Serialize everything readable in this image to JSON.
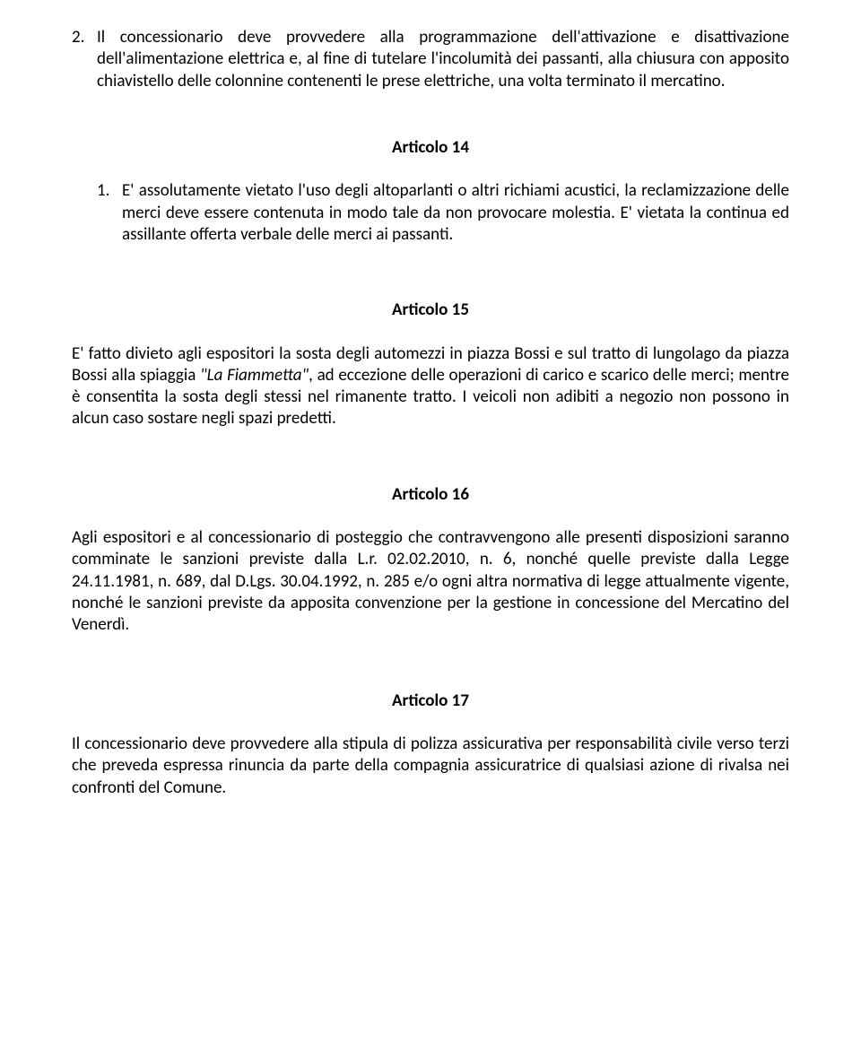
{
  "item2": {
    "marker": "2.",
    "text_a": "Il concessionario deve provvedere alla programmazione dell'attivazione e disattivazione dell'alimentazione elettrica e, al fine di tutelare l'incolumità dei passanti, alla chiusura con apposito chiavistello delle colonnine contenenti le prese elettriche, una volta terminato il mercatino."
  },
  "art14": {
    "heading": "Articolo 14",
    "marker": "1.",
    "text": "E' assolutamente vietato l'uso degli altoparlanti o altri richiami acustici, la reclamizzazione delle merci deve essere contenuta in modo tale da non provocare molestia. E' vietata la continua ed assillante offerta verbale delle merci ai passanti."
  },
  "art15": {
    "heading": "Articolo 15",
    "text_before_italic": "E' fatto divieto agli espositori la sosta degli automezzi in piazza Bossi e sul tratto di lungolago da piazza Bossi alla spiaggia ",
    "italic": "\"La Fiammetta\"",
    "text_after_italic": ", ad eccezione delle operazioni di carico e scarico delle merci; mentre è consentita la sosta degli stessi nel rimanente tratto. I veicoli non adibiti a negozio non possono in alcun caso sostare negli spazi predetti."
  },
  "art16": {
    "heading": "Articolo 16",
    "text": "Agli espositori e al concessionario di posteggio che contravvengono alle presenti disposizioni saranno comminate le sanzioni previste dalla L.r. 02.02.2010, n. 6, nonché quelle previste dalla Legge 24.11.1981, n. 689, dal D.Lgs. 30.04.1992, n. 285 e/o ogni altra normativa di legge attualmente vigente, nonché le sanzioni previste da apposita convenzione per la gestione in concessione del Mercatino del Venerdì."
  },
  "art17": {
    "heading": "Articolo 17",
    "text": "Il concessionario deve provvedere alla stipula di polizza assicurativa per responsabilità civile verso terzi che preveda espressa rinuncia da parte della compagnia assicuratrice di qualsiasi azione di rivalsa nei confronti del Comune."
  }
}
